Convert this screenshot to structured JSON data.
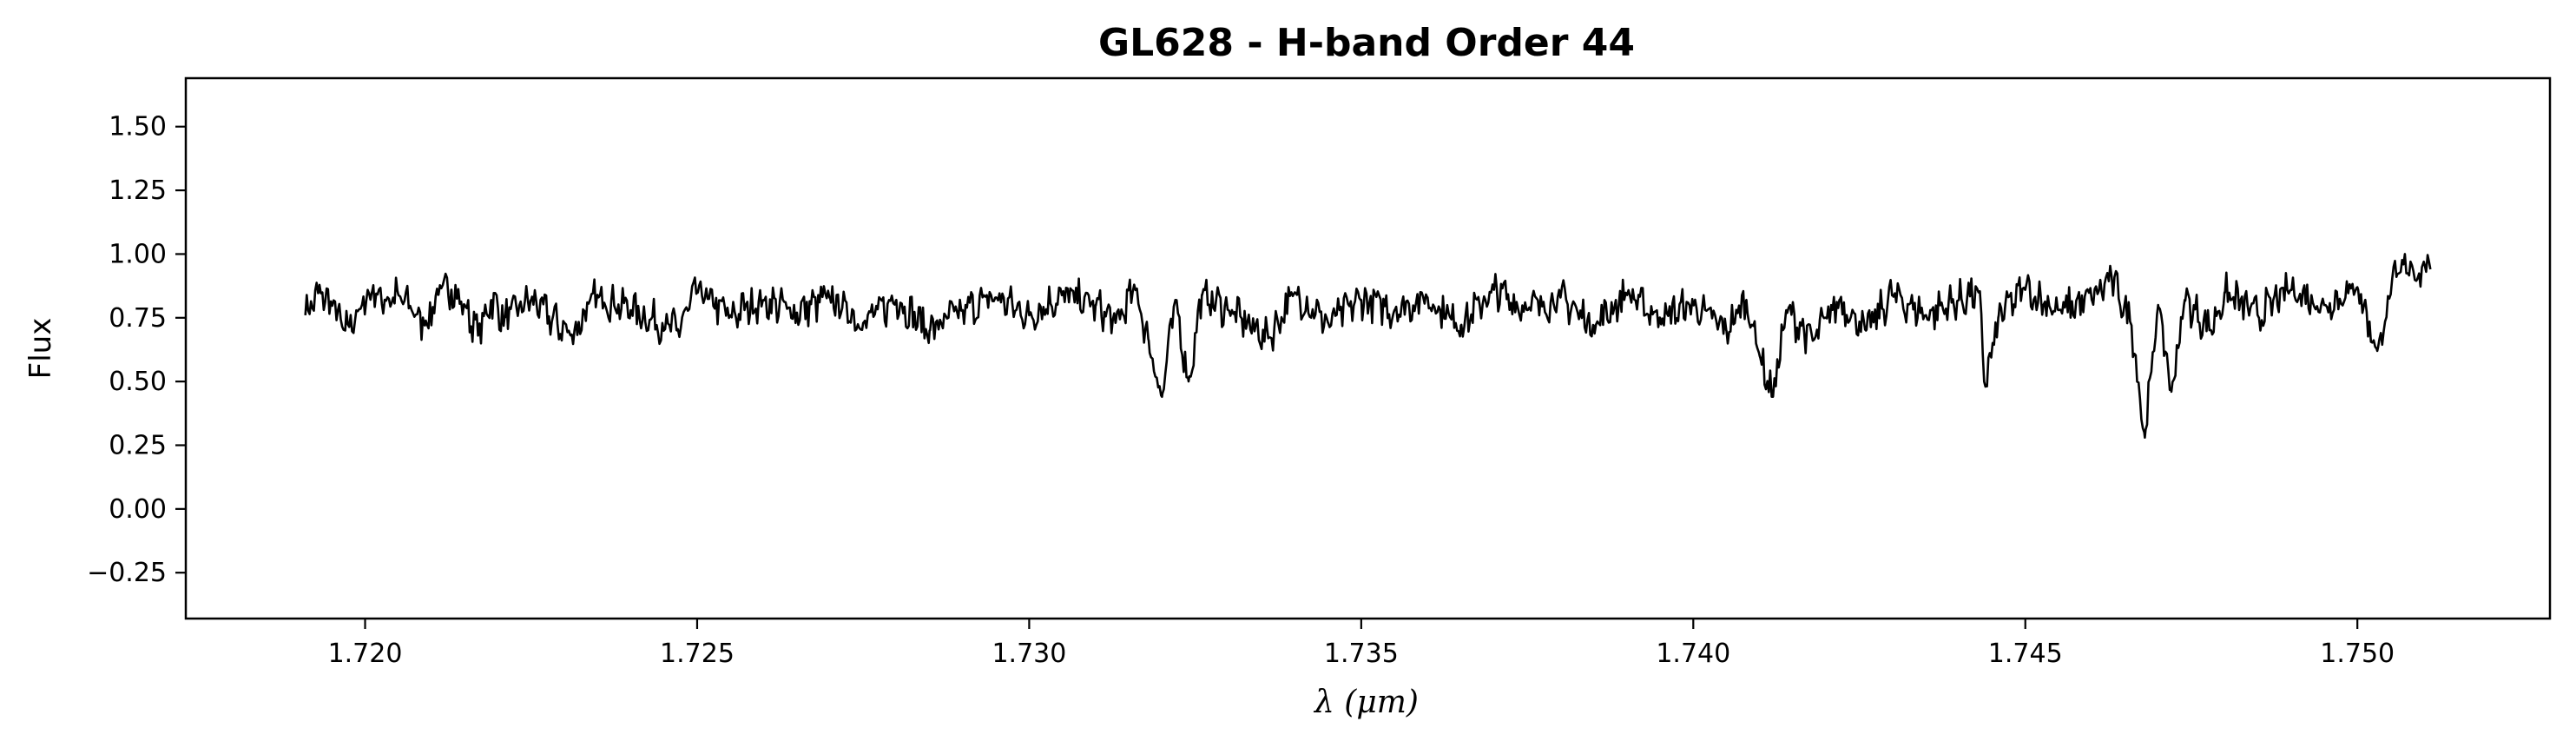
{
  "chart_data": {
    "type": "line",
    "title": "GL628 - H-band Order 44",
    "xlabel": "λ (μm)",
    "ylabel": "Flux",
    "xlim": [
      1.7173,
      1.7529
    ],
    "ylim": [
      -0.43,
      1.69
    ],
    "xticks": [
      1.72,
      1.725,
      1.73,
      1.735,
      1.74,
      1.745,
      1.75
    ],
    "xtick_labels": [
      "1.720",
      "1.725",
      "1.730",
      "1.735",
      "1.740",
      "1.745",
      "1.750"
    ],
    "yticks": [
      -0.25,
      0.0,
      0.25,
      0.5,
      0.75,
      1.0,
      1.25,
      1.5
    ],
    "ytick_labels": [
      "−0.25",
      "0.00",
      "0.25",
      "0.50",
      "0.75",
      "1.00",
      "1.25",
      "1.50"
    ],
    "grid": false,
    "series": [
      {
        "color": "#000000",
        "x": [
          1.7191,
          1.7193,
          1.7195,
          1.7197,
          1.7199,
          1.7201,
          1.7203,
          1.7205,
          1.7207,
          1.7209,
          1.7211,
          1.7213,
          1.7215,
          1.7217,
          1.7219,
          1.7221,
          1.7225,
          1.7231,
          1.7235,
          1.724,
          1.7247,
          1.725,
          1.7255,
          1.726,
          1.7265,
          1.727,
          1.7275,
          1.728,
          1.7285,
          1.729,
          1.7295,
          1.73,
          1.7305,
          1.731,
          1.7313,
          1.7316,
          1.7318,
          1.732,
          1.7322,
          1.7324,
          1.7326,
          1.733,
          1.7336,
          1.734,
          1.7345,
          1.735,
          1.7355,
          1.736,
          1.7365,
          1.737,
          1.7375,
          1.738,
          1.7385,
          1.739,
          1.7395,
          1.74,
          1.7405,
          1.7408,
          1.741,
          1.7412,
          1.7414,
          1.7418,
          1.7422,
          1.7426,
          1.743,
          1.7435,
          1.744,
          1.7443,
          1.7444,
          1.7446,
          1.745,
          1.7455,
          1.746,
          1.7463,
          1.7466,
          1.7468,
          1.747,
          1.7472,
          1.7474,
          1.7478,
          1.748,
          1.7485,
          1.749,
          1.7495,
          1.75,
          1.7503,
          1.7505,
          1.7506,
          1.7508,
          1.7509,
          1.751,
          1.7511
        ],
        "y": [
          0.76,
          0.85,
          0.8,
          0.7,
          0.78,
          0.85,
          0.82,
          0.84,
          0.78,
          0.72,
          0.84,
          0.86,
          0.8,
          0.68,
          0.82,
          0.75,
          0.82,
          0.68,
          0.84,
          0.78,
          0.7,
          0.85,
          0.76,
          0.82,
          0.77,
          0.83,
          0.73,
          0.82,
          0.7,
          0.78,
          0.83,
          0.76,
          0.84,
          0.8,
          0.73,
          0.86,
          0.66,
          0.44,
          0.82,
          0.5,
          0.84,
          0.78,
          0.67,
          0.85,
          0.73,
          0.82,
          0.78,
          0.83,
          0.72,
          0.86,
          0.78,
          0.83,
          0.72,
          0.84,
          0.75,
          0.8,
          0.7,
          0.82,
          0.6,
          0.44,
          0.78,
          0.66,
          0.82,
          0.7,
          0.84,
          0.76,
          0.82,
          0.85,
          0.48,
          0.76,
          0.86,
          0.78,
          0.82,
          0.91,
          0.72,
          0.28,
          0.8,
          0.46,
          0.82,
          0.7,
          0.85,
          0.76,
          0.86,
          0.8,
          0.87,
          0.62,
          0.84,
          0.92,
          0.97,
          0.9,
          0.97,
          0.94
        ]
      }
    ]
  }
}
